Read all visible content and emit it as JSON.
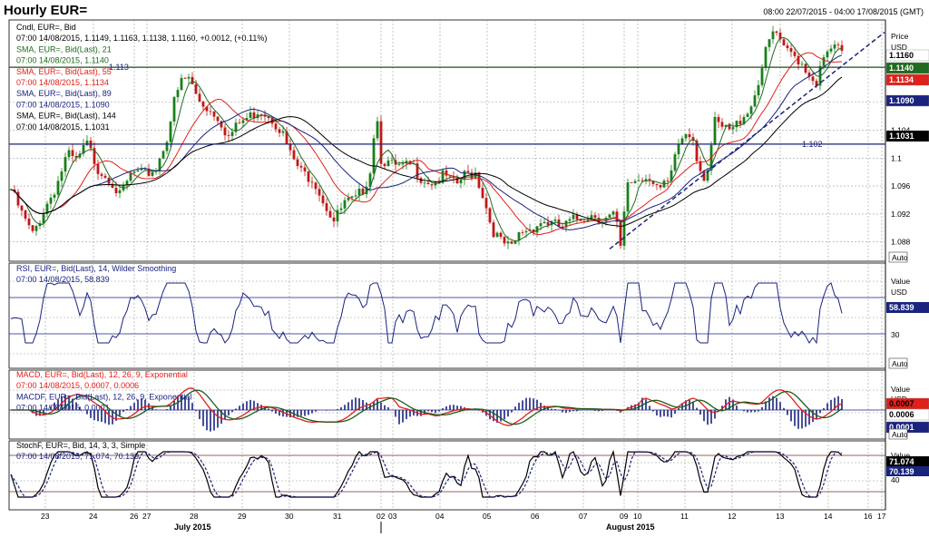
{
  "header": {
    "title": "Hourly EUR=",
    "range": "08:00 22/07/2015 - 04:00 17/08/2015 (GMT)"
  },
  "price_panel": {
    "legend": [
      {
        "text": "Cndl, EUR=, Bid",
        "color": "#000000"
      },
      {
        "text": "07:00 14/08/2015, 1.1149, 1.1163, 1.1138, 1.1160, +0.0012, (+0.11%)",
        "color": "#000000"
      },
      {
        "text": "SMA, EUR=, Bid(Last), 21",
        "color": "#1f6b1f"
      },
      {
        "text": "07:00 14/08/2015, 1.1140",
        "color": "#1f6b1f"
      },
      {
        "text": "SMA, EUR=, Bid(Last), 55",
        "color": "#e0201a"
      },
      {
        "text": "07:00 14/08/2015, 1.1134",
        "color": "#e0201a"
      },
      {
        "text": "SMA, EUR=, Bid(Last), 89",
        "color": "#1a237e"
      },
      {
        "text": "07:00 14/08/2015, 1.1090",
        "color": "#1a237e"
      },
      {
        "text": "SMA, EUR=, Bid(Last), 144",
        "color": "#000000"
      },
      {
        "text": "07:00 14/08/2015, 1.1031",
        "color": "#000000"
      }
    ],
    "axis_title": "Price",
    "axis_unit": "USD",
    "ticks": [
      "1.108",
      "1.104",
      "1.1",
      "1.096",
      "1.092",
      "1.088"
    ],
    "value_labels": [
      {
        "text": "1.1160",
        "bg": "#ffffff",
        "fg": "#000000"
      },
      {
        "text": "1.1140",
        "bg": "#1f6b1f",
        "fg": "#ffffff"
      },
      {
        "text": "1.1134",
        "bg": "#e0201a",
        "fg": "#ffffff"
      },
      {
        "text": "1.1090",
        "bg": "#1a237e",
        "fg": "#ffffff"
      },
      {
        "text": "1.1031",
        "bg": "#000000",
        "fg": "#ffffff"
      }
    ],
    "level_labels": [
      "1.113",
      "1.102"
    ],
    "auto": "Auto"
  },
  "rsi_panel": {
    "legend": [
      {
        "text": "RSI, EUR=, Bid(Last), 14, Wilder Smoothing",
        "color": "#1a237e"
      },
      {
        "text": "07:00 14/08/2015, 58.839",
        "color": "#1a237e"
      }
    ],
    "axis_title": "Value",
    "axis_unit": "USD",
    "tick_30": "30",
    "value_label": "58.839",
    "auto": "Auto"
  },
  "macd_panel": {
    "legend": [
      {
        "text": "MACD, EUR=, Bid(Last), 12, 26, 9, Exponential",
        "color": "#e0201a"
      },
      {
        "text": "07:00 14/08/2015, 0.0007, 0.0006",
        "color": "#e0201a"
      },
      {
        "text": "MACDF, EUR=, Bid(Last), 12, 26, 9, Exponential",
        "color": "#1a237e"
      },
      {
        "text": "07:00 14/08/2015, 0.0001",
        "color": "#1a237e"
      }
    ],
    "axis_title": "Value",
    "axis_unit": "USD",
    "value_labels": [
      {
        "text": "0.0007",
        "bg": "#e0201a",
        "fg": "#000000"
      },
      {
        "text": "0.0006",
        "bg": "#ffffff",
        "fg": "#000000"
      },
      {
        "text": "0.0001",
        "bg": "#1a237e",
        "fg": "#ffffff"
      }
    ],
    "auto": "Auto"
  },
  "stoch_panel": {
    "legend": [
      {
        "text": "StochF, EUR=, Bid, 14, 3, 3, Simple",
        "color": "#000000"
      },
      {
        "text": "07:00 14/08/2015, 71.074, 70.139",
        "color": "#1a237e"
      }
    ],
    "axis_title": "Value",
    "tick_40": "40",
    "value_labels": [
      {
        "text": "71.074",
        "bg": "#000000",
        "fg": "#ffffff"
      },
      {
        "text": "70.139",
        "bg": "#1a237e",
        "fg": "#ffffff"
      }
    ]
  },
  "x_axis": {
    "days": [
      "23",
      "24",
      "26",
      "27",
      "28",
      "29",
      "30",
      "31",
      "02",
      "03",
      "04",
      "05",
      "06",
      "07",
      "09",
      "10",
      "11",
      "12",
      "13",
      "14",
      "16",
      "17"
    ],
    "months": [
      "July 2015",
      "August 2015"
    ]
  },
  "chart_data": {
    "type": "candlestick",
    "title": "Hourly EUR=",
    "x_range": [
      "22/07/2015 08:00",
      "17/08/2015 04:00"
    ],
    "ylim": [
      1.0855,
      1.1195
    ],
    "close_path": [
      [
        0,
        1.0955
      ],
      [
        12,
        1.092
      ],
      [
        24,
        1.089
      ],
      [
        38,
        1.093
      ],
      [
        50,
        1.096
      ],
      [
        62,
        1.1005
      ],
      [
        72,
        1.0995
      ],
      [
        84,
        1.102
      ],
      [
        96,
        1.0985
      ],
      [
        110,
        1.097
      ],
      [
        120,
        1.0945
      ],
      [
        134,
        1.098
      ],
      [
        146,
        1.0975
      ],
      [
        160,
        1.0985
      ],
      [
        172,
        1.103
      ],
      [
        180,
        1.108
      ],
      [
        188,
        1.111
      ],
      [
        196,
        1.1115
      ],
      [
        206,
        1.1085
      ],
      [
        218,
        1.107
      ],
      [
        228,
        1.106
      ],
      [
        240,
        1.103
      ],
      [
        252,
        1.105
      ],
      [
        264,
        1.106
      ],
      [
        274,
        1.107
      ],
      [
        286,
        1.106
      ],
      [
        298,
        1.104
      ],
      [
        308,
        1.1005
      ],
      [
        320,
        1.098
      ],
      [
        334,
        1.097
      ],
      [
        344,
        1.094
      ],
      [
        356,
        1.091
      ],
      [
        368,
        1.0935
      ],
      [
        380,
        1.094
      ],
      [
        390,
        1.096
      ],
      [
        398,
        1.099
      ],
      [
        402,
        1.108
      ],
      [
        408,
        1.1
      ],
      [
        418,
        1.099
      ],
      [
        430,
        1.0985
      ],
      [
        442,
        1.099
      ],
      [
        454,
        1.097
      ],
      [
        466,
        1.0965
      ],
      [
        478,
        1.0975
      ],
      [
        490,
        1.096
      ],
      [
        500,
        1.0975
      ],
      [
        512,
        1.098
      ],
      [
        522,
        1.094
      ],
      [
        530,
        1.09
      ],
      [
        540,
        1.088
      ],
      [
        552,
        1.087
      ],
      [
        562,
        1.0895
      ],
      [
        574,
        1.09
      ],
      [
        586,
        1.091
      ],
      [
        598,
        1.0905
      ],
      [
        608,
        1.09
      ],
      [
        618,
        1.091
      ],
      [
        630,
        1.0915
      ],
      [
        642,
        1.092
      ],
      [
        654,
        1.0912
      ],
      [
        666,
        1.0918
      ],
      [
        672,
        1.087
      ],
      [
        680,
        1.0965
      ],
      [
        692,
        1.097
      ],
      [
        704,
        1.0975
      ],
      [
        716,
        1.0955
      ],
      [
        726,
        1.0965
      ],
      [
        736,
        1.102
      ],
      [
        744,
        1.1035
      ],
      [
        752,
        1.103
      ],
      [
        758,
        1.099
      ],
      [
        766,
        1.097
      ],
      [
        776,
        1.105
      ],
      [
        786,
        1.104
      ],
      [
        796,
        1.104
      ],
      [
        806,
        1.106
      ],
      [
        816,
        1.1075
      ],
      [
        826,
        1.112
      ],
      [
        834,
        1.116
      ],
      [
        842,
        1.1185
      ],
      [
        850,
        1.1155
      ],
      [
        860,
        1.115
      ],
      [
        870,
        1.114
      ],
      [
        880,
        1.112
      ],
      [
        888,
        1.111
      ],
      [
        896,
        1.114
      ],
      [
        906,
        1.116
      ],
      [
        916,
        1.115
      ],
      [
        926,
        1.116
      ]
    ],
    "series": [
      {
        "name": "SMA 21",
        "last": 1.114,
        "color": "#1f6b1f"
      },
      {
        "name": "SMA 55",
        "last": 1.1134,
        "color": "#e0201a"
      },
      {
        "name": "SMA 89",
        "last": 1.109,
        "color": "#1a237e"
      },
      {
        "name": "SMA 144",
        "last": 1.1031,
        "color": "#000000"
      }
    ],
    "horizontal_levels": [
      1.113,
      1.102
    ],
    "trendline": {
      "from": [
        672,
        1.087
      ],
      "to": [
        975,
        1.118
      ]
    },
    "rsi_last": 58.839,
    "rsi_bands": [
      70,
      30
    ],
    "macd_last": [
      0.0007,
      0.0006,
      0.0001
    ],
    "stoch_last": [
      71.074,
      70.139
    ]
  }
}
